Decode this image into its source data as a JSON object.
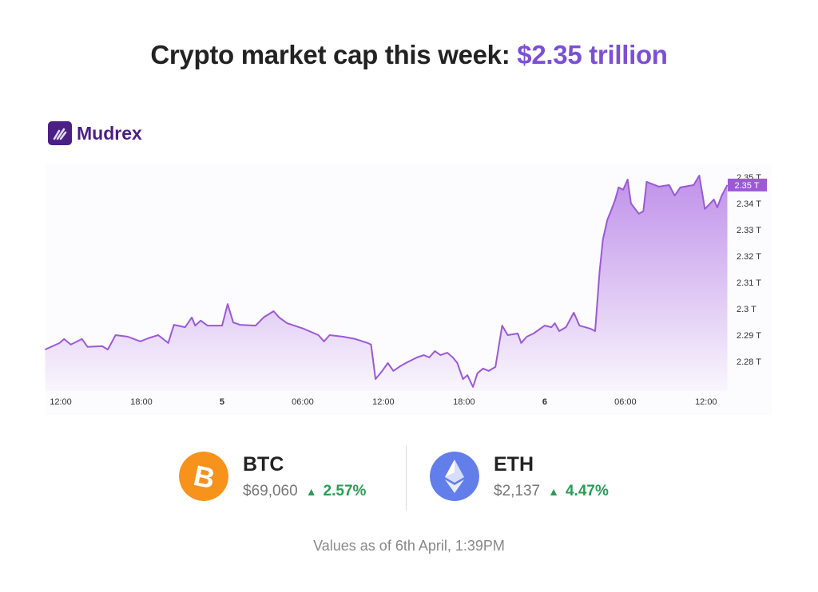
{
  "header": {
    "title_prefix": "Crypto market cap this week: ",
    "title_value": "$2.35 trillion",
    "accent_color": "#7b4fd6"
  },
  "brand": {
    "name": "Mudrex",
    "color": "#4b1f86"
  },
  "chart_data": {
    "type": "area",
    "title": "",
    "xlabel": "",
    "ylabel": "",
    "ylim": [
      2.2695,
      2.3525
    ],
    "grid": false,
    "line_color": "#9b59d6",
    "current_value_label": "2.35 T",
    "x_ticks": [
      {
        "at": "04-04 12:00",
        "label": "12:00",
        "bold": false
      },
      {
        "at": "04-04 18:00",
        "label": "18:00",
        "bold": false
      },
      {
        "at": "04-05 00:00",
        "label": "5",
        "bold": true
      },
      {
        "at": "04-05 06:00",
        "label": "06:00",
        "bold": false
      },
      {
        "at": "04-05 12:00",
        "label": "12:00",
        "bold": false
      },
      {
        "at": "04-05 18:00",
        "label": "18:00",
        "bold": false
      },
      {
        "at": "04-06 00:00",
        "label": "6",
        "bold": true
      },
      {
        "at": "04-06 06:00",
        "label": "06:00",
        "bold": false
      },
      {
        "at": "04-06 12:00",
        "label": "12:00",
        "bold": false
      }
    ],
    "y_ticks": [
      {
        "value": 2.35,
        "label": "2.35 T"
      },
      {
        "value": 2.34,
        "label": "2.34 T"
      },
      {
        "value": 2.33,
        "label": "2.33 T"
      },
      {
        "value": 2.32,
        "label": "2.32 T"
      },
      {
        "value": 2.31,
        "label": "2.31 T"
      },
      {
        "value": 2.3,
        "label": "2.3 T"
      },
      {
        "value": 2.29,
        "label": "2.29 T"
      },
      {
        "value": 2.28,
        "label": "2.28 T"
      }
    ],
    "points": [
      [
        "04-04 10:50",
        2.2845
      ],
      [
        "04-04 11:55",
        2.287
      ],
      [
        "04-04 12:15",
        2.2885
      ],
      [
        "04-04 12:45",
        2.2864
      ],
      [
        "04-04 13:35",
        2.2885
      ],
      [
        "04-04 14:00",
        2.2855
      ],
      [
        "04-04 15:05",
        2.2858
      ],
      [
        "04-04 15:30",
        2.2845
      ],
      [
        "04-04 16:05",
        2.29
      ],
      [
        "04-04 17:00",
        2.2894
      ],
      [
        "04-04 17:55",
        2.2876
      ],
      [
        "04-04 18:30",
        2.2888
      ],
      [
        "04-04 19:15",
        2.29
      ],
      [
        "04-04 20:00",
        2.287
      ],
      [
        "04-04 20:25",
        2.2939
      ],
      [
        "04-04 21:15",
        2.293
      ],
      [
        "04-04 21:45",
        2.2967
      ],
      [
        "04-04 22:00",
        2.2936
      ],
      [
        "04-04 22:25",
        2.2955
      ],
      [
        "04-04 22:55",
        2.2936
      ],
      [
        "04-05 00:00",
        2.2936
      ],
      [
        "04-05 00:25",
        2.3018
      ],
      [
        "04-05 00:50",
        2.2948
      ],
      [
        "04-05 01:20",
        2.2939
      ],
      [
        "04-05 02:30",
        2.2936
      ],
      [
        "04-05 03:05",
        2.2967
      ],
      [
        "04-05 03:50",
        2.2991
      ],
      [
        "04-05 04:15",
        2.2967
      ],
      [
        "04-05 04:50",
        2.2945
      ],
      [
        "04-05 06:05",
        2.2924
      ],
      [
        "04-05 07:10",
        2.29
      ],
      [
        "04-05 07:35",
        2.2876
      ],
      [
        "04-05 08:00",
        2.29
      ],
      [
        "04-05 09:00",
        2.2894
      ],
      [
        "04-05 09:55",
        2.2885
      ],
      [
        "04-05 10:50",
        2.287
      ],
      [
        "04-05 11:05",
        2.2864
      ],
      [
        "04-05 11:25",
        2.2733
      ],
      [
        "04-05 11:55",
        2.2764
      ],
      [
        "04-05 12:20",
        2.2794
      ],
      [
        "04-05 12:45",
        2.2764
      ],
      [
        "04-05 13:10",
        2.2779
      ],
      [
        "04-05 13:40",
        2.2794
      ],
      [
        "04-05 14:30",
        2.2815
      ],
      [
        "04-05 15:00",
        2.2824
      ],
      [
        "04-05 15:25",
        2.2815
      ],
      [
        "04-05 15:50",
        2.2839
      ],
      [
        "04-05 16:15",
        2.2824
      ],
      [
        "04-05 16:45",
        2.2833
      ],
      [
        "04-05 17:10",
        2.2815
      ],
      [
        "04-05 17:30",
        2.2794
      ],
      [
        "04-05 17:55",
        2.2733
      ],
      [
        "04-05 18:15",
        2.2748
      ],
      [
        "04-05 18:40",
        2.2703
      ],
      [
        "04-05 19:00",
        2.2755
      ],
      [
        "04-05 19:25",
        2.2773
      ],
      [
        "04-05 19:50",
        2.2764
      ],
      [
        "04-05 20:20",
        2.2779
      ],
      [
        "04-05 20:50",
        2.2936
      ],
      [
        "04-05 21:15",
        2.29
      ],
      [
        "04-05 22:00",
        2.2906
      ],
      [
        "04-05 22:15",
        2.287
      ],
      [
        "04-05 22:40",
        2.2894
      ],
      [
        "04-05 23:10",
        2.2906
      ],
      [
        "04-06 00:00",
        2.2936
      ],
      [
        "04-06 00:30",
        2.293
      ],
      [
        "04-06 00:45",
        2.2945
      ],
      [
        "04-06 01:05",
        2.2915
      ],
      [
        "04-06 01:35",
        2.293
      ],
      [
        "04-06 02:10",
        2.2985
      ],
      [
        "04-06 02:35",
        2.2936
      ],
      [
        "04-06 03:25",
        2.2924
      ],
      [
        "04-06 03:45",
        2.2915
      ],
      [
        "04-06 04:05",
        2.3142
      ],
      [
        "04-06 04:20",
        2.3264
      ],
      [
        "04-06 04:40",
        2.3339
      ],
      [
        "04-06 04:55",
        2.337
      ],
      [
        "04-06 05:15",
        2.3415
      ],
      [
        "04-06 05:30",
        2.3461
      ],
      [
        "04-06 05:50",
        2.3452
      ],
      [
        "04-06 06:10",
        2.3491
      ],
      [
        "04-06 06:25",
        2.34
      ],
      [
        "04-06 07:00",
        2.3361
      ],
      [
        "04-06 07:20",
        2.337
      ],
      [
        "04-06 07:35",
        2.3482
      ],
      [
        "04-06 08:30",
        2.3464
      ],
      [
        "04-06 09:15",
        2.347
      ],
      [
        "04-06 09:40",
        2.343
      ],
      [
        "04-06 10:05",
        2.3461
      ],
      [
        "04-06 11:05",
        2.347
      ],
      [
        "04-06 11:30",
        2.3506
      ],
      [
        "04-06 11:55",
        2.3379
      ],
      [
        "04-06 12:35",
        2.3415
      ],
      [
        "04-06 12:50",
        2.3385
      ],
      [
        "04-06 13:10",
        2.343
      ],
      [
        "04-06 13:35",
        2.347
      ]
    ]
  },
  "coins": [
    {
      "symbol": "BTC",
      "price": "$69,060",
      "change": "2.57%",
      "direction": "up",
      "icon": "bitcoin-icon",
      "color": "#f7931a"
    },
    {
      "symbol": "ETH",
      "price": "$2,137",
      "change": "4.47%",
      "direction": "up",
      "icon": "ethereum-icon",
      "color": "#627eea"
    }
  ],
  "footer": {
    "note": "Values as of 6th April, 1:39PM"
  }
}
